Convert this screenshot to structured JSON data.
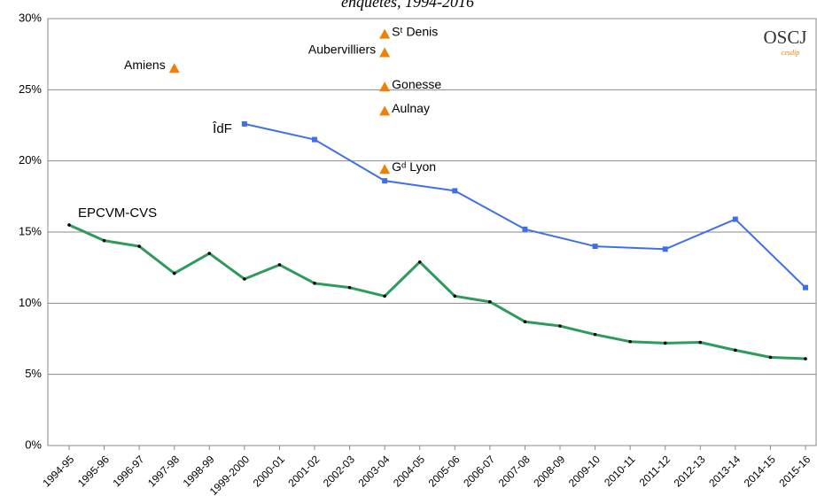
{
  "chart_data": {
    "type": "line",
    "title": "enquêtes, 1994-2016",
    "logo": {
      "text": "OSCJ",
      "subtext": "cesdip"
    },
    "categories": [
      "1994-95",
      "1995-96",
      "1996-97",
      "1997-98",
      "1998-99",
      "1999-2000",
      "2000-01",
      "2001-02",
      "2002-03",
      "2003-04",
      "2004-05",
      "2005-06",
      "2006-07",
      "2007-08",
      "2008-09",
      "2009-10",
      "2010-11",
      "2011-12",
      "2012-13",
      "2013-14",
      "2014-15",
      "2015-16"
    ],
    "ylim": [
      0,
      30
    ],
    "yticks": [
      {
        "value": 0,
        "label": "0%"
      },
      {
        "value": 5,
        "label": "5%"
      },
      {
        "value": 10,
        "label": "10%"
      },
      {
        "value": 15,
        "label": "15%"
      },
      {
        "value": 20,
        "label": "20%"
      },
      {
        "value": 25,
        "label": "25%"
      },
      {
        "value": 30,
        "label": "30%"
      }
    ],
    "grid": true,
    "series": [
      {
        "name": "EPCVM-CVS",
        "color": "#2e9a5c",
        "values": [
          15.5,
          14.4,
          14.0,
          12.1,
          13.5,
          11.7,
          12.7,
          11.4,
          11.1,
          10.5,
          12.9,
          10.5,
          10.1,
          8.7,
          8.4,
          7.8,
          7.3,
          7.2,
          7.25,
          6.7,
          6.2,
          6.1
        ]
      },
      {
        "name": "ÎdF",
        "color": "#3f6fe8",
        "x": [
          "1999-2000",
          "2001-02",
          "2003-04",
          "2005-06",
          "2007-08",
          "2009-10",
          "2011-12",
          "2013-14",
          "2015-16"
        ],
        "values": [
          22.6,
          21.5,
          18.6,
          17.9,
          15.2,
          14.0,
          13.8,
          15.9,
          11.1
        ]
      }
    ],
    "points": {
      "color": "#f07f09",
      "items": [
        {
          "name": "Amiens",
          "x": "1997-98",
          "value": 26.5
        },
        {
          "name": "Sᵗ Denis",
          "x": "2003-04",
          "value": 28.9
        },
        {
          "name": "Aubervilliers",
          "x": "2003-04",
          "value": 27.6
        },
        {
          "name": "Gonesse",
          "x": "2003-04",
          "value": 25.2
        },
        {
          "name": "Aulnay",
          "x": "2003-04",
          "value": 23.5
        },
        {
          "name": "Gᵈ Lyon",
          "x": "2003-04",
          "value": 19.4
        }
      ]
    }
  }
}
